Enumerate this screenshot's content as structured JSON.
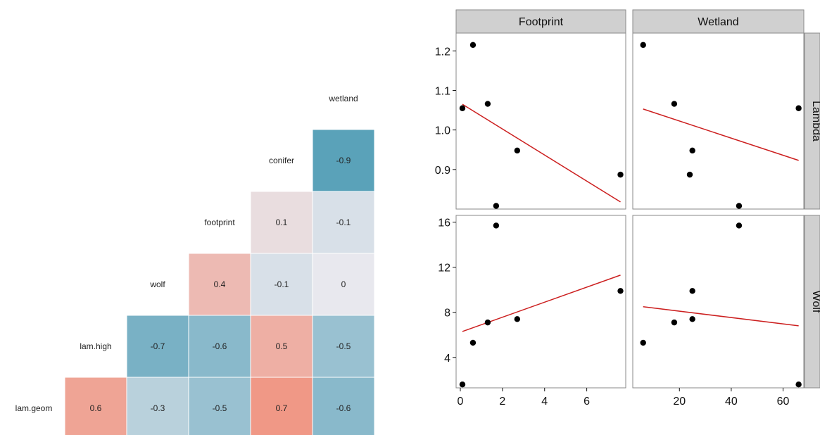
{
  "colors": {
    "positive": "#f4765a",
    "negative": "#4a9ab3",
    "neutral": "#e8e8ee",
    "fit_line": "#cc1f1f",
    "point": "#000000",
    "strip": "#d0d0d0",
    "panel_border": "#8a8a8a"
  },
  "chart_data": [
    {
      "type": "heatmap",
      "title": "",
      "variables": [
        "lam.geom",
        "lam.high",
        "wolf",
        "footprint",
        "conifer",
        "wetland"
      ],
      "cells": [
        {
          "row": "lam.geom",
          "col": "lam.high",
          "value": "0.6"
        },
        {
          "row": "lam.geom",
          "col": "wolf",
          "value": "-0.3"
        },
        {
          "row": "lam.geom",
          "col": "footprint",
          "value": "-0.5"
        },
        {
          "row": "lam.geom",
          "col": "conifer",
          "value": "0.7"
        },
        {
          "row": "lam.geom",
          "col": "wetland",
          "value": "-0.6"
        },
        {
          "row": "lam.high",
          "col": "wolf",
          "value": "-0.7"
        },
        {
          "row": "lam.high",
          "col": "footprint",
          "value": "-0.6"
        },
        {
          "row": "lam.high",
          "col": "conifer",
          "value": "0.5"
        },
        {
          "row": "lam.high",
          "col": "wetland",
          "value": "-0.5"
        },
        {
          "row": "wolf",
          "col": "footprint",
          "value": "0.4"
        },
        {
          "row": "wolf",
          "col": "conifer",
          "value": "-0.1"
        },
        {
          "row": "wolf",
          "col": "wetland",
          "value": "0"
        },
        {
          "row": "footprint",
          "col": "conifer",
          "value": "0.1"
        },
        {
          "row": "footprint",
          "col": "wetland",
          "value": "-0.1"
        },
        {
          "row": "conifer",
          "col": "wetland",
          "value": "-0.9"
        }
      ]
    },
    {
      "type": "scatter",
      "title": "",
      "facet_cols": [
        "Footprint",
        "Wetland"
      ],
      "facet_rows": [
        "Lambda",
        "Wolf"
      ],
      "grid": false,
      "xlim": {
        "Footprint": [
          -0.2,
          7.85
        ],
        "Wetland": [
          2,
          68
        ]
      },
      "ylim": {
        "Lambda": [
          0.8,
          1.245
        ],
        "Wolf": [
          1.3,
          16.6
        ]
      },
      "xticks": {
        "Footprint": [
          "0",
          "2",
          "4",
          "6"
        ],
        "Wetland": [
          "20",
          "40",
          "60"
        ]
      },
      "yticks": {
        "Lambda": [
          "0.9",
          "1.0",
          "1.1",
          "1.2"
        ],
        "Wolf": [
          "4",
          "8",
          "12",
          "16"
        ]
      },
      "panels": [
        {
          "col": "Footprint",
          "row": "Lambda",
          "points": [
            [
              0.1,
              1.055
            ],
            [
              0.6,
              1.215
            ],
            [
              1.3,
              1.066
            ],
            [
              1.7,
              0.808
            ],
            [
              2.7,
              0.948
            ],
            [
              7.6,
              0.887
            ]
          ],
          "fit": [
            [
              0.1,
              1.065
            ],
            [
              7.6,
              0.818
            ]
          ]
        },
        {
          "col": "Wetland",
          "row": "Lambda",
          "points": [
            [
              6,
              1.215
            ],
            [
              18,
              1.066
            ],
            [
              24,
              0.887
            ],
            [
              25,
              0.948
            ],
            [
              43,
              0.808
            ],
            [
              66,
              1.055
            ]
          ],
          "fit": [
            [
              6,
              1.053
            ],
            [
              66,
              0.923
            ]
          ]
        },
        {
          "col": "Footprint",
          "row": "Wolf",
          "points": [
            [
              0.1,
              1.6
            ],
            [
              0.6,
              5.3
            ],
            [
              1.3,
              7.1
            ],
            [
              1.7,
              15.7
            ],
            [
              2.7,
              7.4
            ],
            [
              7.6,
              9.9
            ]
          ],
          "fit": [
            [
              0.1,
              6.3
            ],
            [
              7.6,
              11.3
            ]
          ]
        },
        {
          "col": "Wetland",
          "row": "Wolf",
          "points": [
            [
              6,
              5.3
            ],
            [
              18,
              7.1
            ],
            [
              25,
              9.9
            ],
            [
              25,
              7.4
            ],
            [
              43,
              15.7
            ],
            [
              66,
              1.6
            ]
          ],
          "fit": [
            [
              6,
              8.5
            ],
            [
              66,
              6.8
            ]
          ]
        }
      ]
    }
  ]
}
